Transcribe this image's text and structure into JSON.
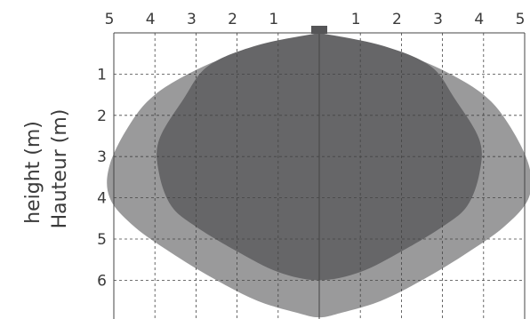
{
  "chart_data": {
    "type": "area",
    "title": "",
    "ylabel_en": "height (m)",
    "ylabel_fr": "Hauteur (m)",
    "x_ticks": [
      "5",
      "4",
      "3",
      "2",
      "1",
      "1",
      "2",
      "3",
      "4",
      "5"
    ],
    "y_ticks": [
      "1",
      "2",
      "3",
      "4",
      "5",
      "6"
    ],
    "xlim": [
      -5,
      5
    ],
    "ylim": [
      0,
      7
    ],
    "y_inverted": true,
    "grid": true,
    "colors": {
      "outer": "#9a9a9b",
      "inner": "#666668",
      "grid": "#444444",
      "sensor": "#555557"
    },
    "series": [
      {
        "x": [
          0,
          -1,
          -2,
          -3,
          -4,
          -4.6,
          -5.1,
          -5.1,
          -4.5,
          -3.5,
          -2.5,
          -1.5,
          -0.5,
          0,
          0.5,
          1.5,
          2.5,
          3.5,
          4.5,
          5.1,
          5.1,
          4.6,
          4,
          3,
          2,
          1,
          0
        ],
        "y": [
          0,
          0.25,
          0.5,
          0.9,
          1.5,
          2.2,
          3.2,
          4,
          4.7,
          5.4,
          6.0,
          6.5,
          6.8,
          6.9,
          6.8,
          6.5,
          6.0,
          5.4,
          4.7,
          4,
          3.2,
          2.2,
          1.5,
          0.9,
          0.5,
          0.25,
          0
        ]
      },
      {
        "x": [
          0,
          -1.5,
          -2.7,
          -3.3,
          -3.9,
          -3.9,
          -3.6,
          -3,
          -2,
          -1,
          0,
          1,
          2,
          3,
          3.6,
          3.9,
          3.9,
          3.3,
          2.7,
          1.5,
          0
        ],
        "y": [
          0,
          0.3,
          0.8,
          1.6,
          2.6,
          3.4,
          4.2,
          4.7,
          5.3,
          5.8,
          6.0,
          5.8,
          5.3,
          4.7,
          4.2,
          3.4,
          2.6,
          1.6,
          0.8,
          0.3,
          0
        ]
      }
    ]
  }
}
